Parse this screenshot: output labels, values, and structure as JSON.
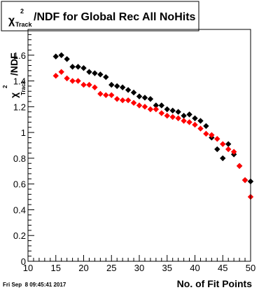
{
  "chart_data": {
    "type": "scatter",
    "title_main": "/NDF for Global Rec All NoHits",
    "title_chi": "χ",
    "title_sup": "2",
    "title_sub": "Track",
    "xlabel": "No. of Fit Points",
    "ylabel_main": "/NDF",
    "ylabel_chi": "χ",
    "ylabel_sup": "2",
    "ylabel_sub": "Track",
    "footer_date": "Fri Sep  8 09:45:41 2017",
    "xlim": [
      10,
      50
    ],
    "ylim": [
      0,
      1.8
    ],
    "xticks": [
      10,
      15,
      20,
      25,
      30,
      35,
      40,
      45,
      50
    ],
    "yticks": [
      0,
      0.2,
      0.4,
      0.6,
      0.8,
      1,
      1.2,
      1.4,
      1.6
    ],
    "colors": {
      "black_series": "#000000",
      "red_series": "#ff0000"
    },
    "series": [
      {
        "color": "#000000",
        "x": [
          15,
          16,
          17,
          18,
          19,
          20,
          21,
          22,
          23,
          24,
          25,
          26,
          27,
          28,
          29,
          30,
          31,
          32,
          33,
          34,
          35,
          36,
          37,
          38,
          39,
          40,
          41,
          42,
          43,
          44,
          45,
          46,
          47,
          48,
          49,
          50
        ],
        "y": [
          1.59,
          1.6,
          1.57,
          1.51,
          1.51,
          1.5,
          1.47,
          1.46,
          1.45,
          1.43,
          1.37,
          1.36,
          1.35,
          1.33,
          1.31,
          1.28,
          1.27,
          1.26,
          1.21,
          1.21,
          1.18,
          1.17,
          1.16,
          1.13,
          1.14,
          1.11,
          1.09,
          1.05,
          0.96,
          0.87,
          0.8,
          0.91,
          0.83,
          0.74,
          0.63,
          0.62
        ]
      },
      {
        "color": "#ff0000",
        "x": [
          15,
          16,
          17,
          18,
          19,
          20,
          21,
          22,
          23,
          24,
          25,
          26,
          27,
          28,
          29,
          30,
          31,
          32,
          33,
          34,
          35,
          36,
          37,
          38,
          39,
          40,
          41,
          42,
          43,
          44,
          45,
          46,
          47,
          48,
          49,
          50
        ],
        "y": [
          1.44,
          1.47,
          1.42,
          1.4,
          1.4,
          1.37,
          1.37,
          1.35,
          1.3,
          1.29,
          1.29,
          1.26,
          1.25,
          1.25,
          1.23,
          1.21,
          1.2,
          1.18,
          1.18,
          1.15,
          1.13,
          1.12,
          1.11,
          1.09,
          1.08,
          1.06,
          1.03,
          0.99,
          0.98,
          0.95,
          0.91,
          0.87,
          0.85,
          0.74,
          0.63,
          0.5
        ]
      }
    ]
  }
}
